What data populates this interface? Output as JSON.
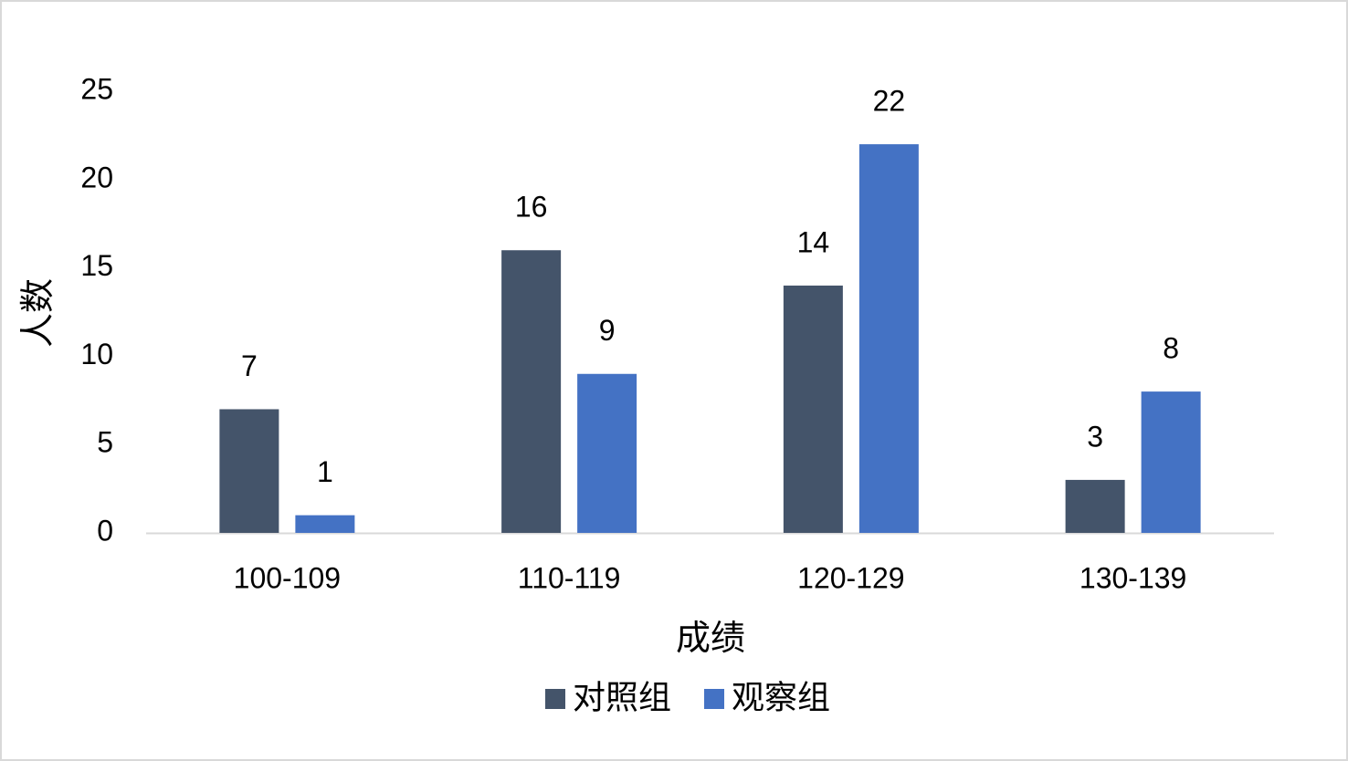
{
  "chart_data": {
    "type": "bar",
    "x_label": "成绩",
    "y_label": "人数",
    "categories": [
      "100-109",
      "110-119",
      "120-129",
      "130-139"
    ],
    "series": [
      {
        "name": "对照组",
        "color": "#44546a",
        "values": [
          7,
          16,
          14,
          3
        ]
      },
      {
        "name": "观察组",
        "color": "#4472c4",
        "values": [
          1,
          9,
          22,
          8
        ]
      }
    ],
    "ylim": [
      0,
      25
    ],
    "yticks": [
      0,
      5,
      10,
      15,
      20,
      25
    ],
    "grid": false,
    "legend": "bottom"
  }
}
